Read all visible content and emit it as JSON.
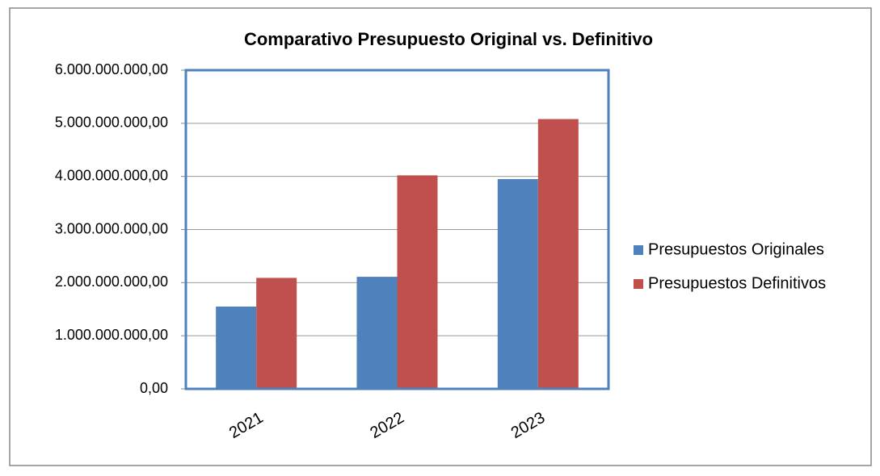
{
  "chart_data": {
    "type": "bar",
    "title": "Comparativo Presupuesto Original vs. Definitivo",
    "categories": [
      "2021",
      "2022",
      "2023"
    ],
    "series": [
      {
        "name": "Presupuestos Originales",
        "color": "#4f81bd",
        "values": [
          1550000000,
          2110000000,
          3950000000
        ]
      },
      {
        "name": "Presupuestos Definitivos",
        "color": "#c0504d",
        "values": [
          2090000000,
          4020000000,
          5080000000
        ]
      }
    ],
    "ylim": [
      0,
      6000000000
    ],
    "yticks": [
      {
        "value": 0,
        "label": "0,00"
      },
      {
        "value": 1000000000,
        "label": "1.000.000.000,00"
      },
      {
        "value": 2000000000,
        "label": "2.000.000.000,00"
      },
      {
        "value": 3000000000,
        "label": "3.000.000.000,00"
      },
      {
        "value": 4000000000,
        "label": "4.000.000.000,00"
      },
      {
        "value": 5000000000,
        "label": "5.000.000.000,00"
      },
      {
        "value": 6000000000,
        "label": "6.000.000.000,00"
      }
    ],
    "grid": true,
    "legend": "right"
  }
}
